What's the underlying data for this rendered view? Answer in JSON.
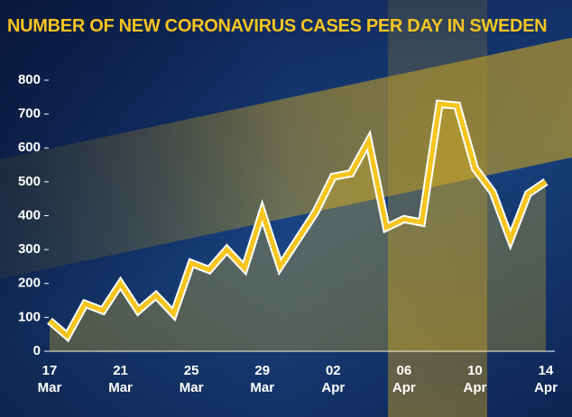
{
  "chart_data": {
    "type": "line",
    "title": "NUMBER OF NEW CORONAVIRUS CASES PER DAY IN SWEDEN",
    "categories": [
      "17 Mar",
      null,
      null,
      null,
      "21 Mar",
      null,
      null,
      null,
      "25 Mar",
      null,
      null,
      null,
      "29 Mar",
      null,
      null,
      null,
      "02 Apr",
      null,
      null,
      null,
      "06 Apr",
      null,
      null,
      null,
      "10 Apr",
      null,
      null,
      null,
      "14 Apr"
    ],
    "values": [
      90,
      45,
      140,
      120,
      200,
      120,
      165,
      110,
      260,
      240,
      300,
      245,
      410,
      250,
      330,
      410,
      515,
      525,
      620,
      365,
      390,
      380,
      730,
      725,
      540,
      470,
      330,
      465,
      500
    ],
    "color": "#f7c51e",
    "ylim": [
      0,
      800
    ],
    "yticks": [
      0,
      100,
      200,
      300,
      400,
      500,
      600,
      700,
      800
    ]
  }
}
